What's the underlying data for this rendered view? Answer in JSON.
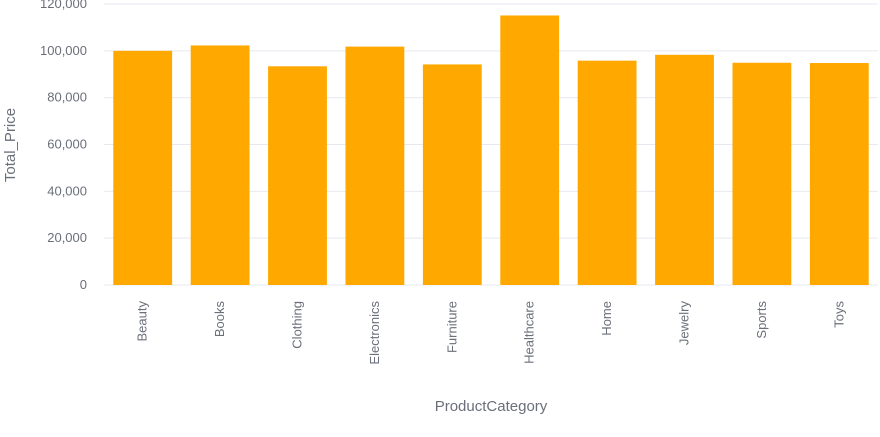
{
  "chart_data": {
    "type": "bar",
    "xlabel": "ProductCategory",
    "ylabel": "Total_Price",
    "categories": [
      "Beauty",
      "Books",
      "Clothing",
      "Electronics",
      "Furniture",
      "Healthcare",
      "Home",
      "Jewelry",
      "Sports",
      "Toys"
    ],
    "values": [
      100000,
      102300,
      93400,
      101800,
      94200,
      115100,
      95800,
      98300,
      94900,
      94800
    ],
    "ylim": [
      0,
      120000
    ],
    "yticks": [
      0,
      20000,
      40000,
      60000,
      80000,
      100000,
      120000
    ],
    "ytick_labels": [
      "0",
      "20,000",
      "40,000",
      "60,000",
      "80,000",
      "100,000",
      "120,000"
    ],
    "grid": true,
    "legend": false,
    "bar_color": "#FFA900",
    "grid_color": "#e6e9ef",
    "text_color": "#6b6f7a"
  }
}
